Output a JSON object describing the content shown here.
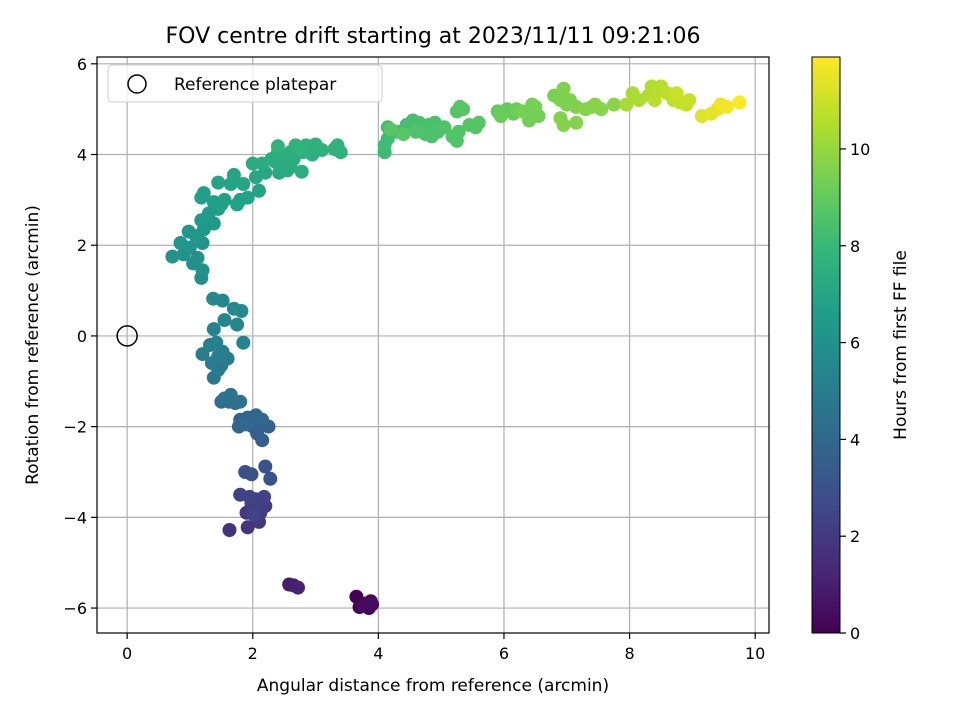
{
  "chart_data": {
    "type": "scatter",
    "title": "FOV centre drift starting at 2023/11/11 09:21:06",
    "xlabel": "Angular distance from reference (arcmin)",
    "ylabel": "Rotation from reference (arcmin)",
    "xlim": [
      -0.48,
      10.22
    ],
    "ylim": [
      -6.55,
      6.15
    ],
    "xticks": [
      0,
      2,
      4,
      6,
      8,
      10
    ],
    "xtick_labels": [
      "0",
      "2",
      "4",
      "6",
      "8",
      "10"
    ],
    "yticks": [
      -6,
      -4,
      -2,
      0,
      2,
      4,
      6
    ],
    "ytick_labels": [
      "−6",
      "−4",
      "−2",
      "0",
      "2",
      "4",
      "6"
    ],
    "grid": true,
    "legend": {
      "position": "upper-left",
      "entries": [
        "Reference platepar"
      ]
    },
    "reference_point": {
      "x": 0,
      "y": 0,
      "label": "Reference platepar",
      "marker": "open-circle"
    },
    "colorbar": {
      "label": "Hours from first FF file",
      "range": [
        0,
        11.9
      ],
      "ticks": [
        0,
        2,
        4,
        6,
        8,
        10
      ],
      "tick_labels": [
        "0",
        "2",
        "4",
        "6",
        "8",
        "10"
      ],
      "colormap": "viridis"
    },
    "points": [
      [
        3.65,
        -5.75,
        0.05
      ],
      [
        3.7,
        -5.98,
        0.1
      ],
      [
        3.8,
        -5.9,
        0.15
      ],
      [
        3.85,
        -6.0,
        0.2
      ],
      [
        3.88,
        -5.85,
        0.25
      ],
      [
        3.78,
        -5.95,
        0.3
      ],
      [
        3.9,
        -5.92,
        0.35
      ],
      [
        2.58,
        -5.48,
        0.9
      ],
      [
        2.65,
        -5.5,
        1.0
      ],
      [
        2.72,
        -5.55,
        1.1
      ],
      [
        1.63,
        -4.28,
        1.7
      ],
      [
        1.92,
        -4.22,
        1.8
      ],
      [
        2.1,
        -4.1,
        1.9
      ],
      [
        1.9,
        -3.9,
        2.0
      ],
      [
        2.0,
        -3.85,
        2.05
      ],
      [
        2.12,
        -3.9,
        2.1
      ],
      [
        2.2,
        -3.75,
        2.15
      ],
      [
        1.98,
        -3.7,
        2.2
      ],
      [
        2.05,
        -3.6,
        2.25
      ],
      [
        1.8,
        -3.5,
        2.3
      ],
      [
        2.18,
        -3.55,
        2.35
      ],
      [
        1.95,
        -3.55,
        2.4
      ],
      [
        2.02,
        -3.95,
        2.45
      ],
      [
        1.88,
        -3.0,
        2.9
      ],
      [
        1.98,
        -3.05,
        2.95
      ],
      [
        2.28,
        -3.15,
        3.0
      ],
      [
        2.2,
        -2.88,
        3.05
      ],
      [
        2.15,
        -2.3,
        3.5
      ],
      [
        2.07,
        -2.15,
        3.55
      ],
      [
        2.0,
        -2.0,
        3.6
      ],
      [
        2.12,
        -2.0,
        3.65
      ],
      [
        2.25,
        -2.0,
        3.7
      ],
      [
        1.78,
        -2.0,
        3.75
      ],
      [
        1.8,
        -1.85,
        3.8
      ],
      [
        1.92,
        -1.8,
        3.85
      ],
      [
        2.05,
        -1.75,
        3.9
      ],
      [
        2.15,
        -1.85,
        3.95
      ],
      [
        1.9,
        -1.95,
        4.0
      ],
      [
        1.5,
        -1.45,
        4.3
      ],
      [
        1.62,
        -1.45,
        4.35
      ],
      [
        1.72,
        -1.48,
        4.4
      ],
      [
        1.65,
        -1.3,
        4.45
      ],
      [
        1.8,
        -1.45,
        4.5
      ],
      [
        1.55,
        -1.38,
        4.55
      ],
      [
        1.38,
        -0.92,
        4.8
      ],
      [
        1.45,
        -0.75,
        4.85
      ],
      [
        1.5,
        -0.65,
        4.9
      ],
      [
        1.35,
        -0.6,
        4.95
      ],
      [
        1.6,
        -0.5,
        5.0
      ],
      [
        1.45,
        -0.45,
        5.05
      ],
      [
        1.2,
        -0.4,
        5.1
      ],
      [
        1.52,
        -0.35,
        5.15
      ],
      [
        1.32,
        -0.2,
        5.2
      ],
      [
        1.42,
        -0.15,
        5.25
      ],
      [
        1.85,
        -0.15,
        5.3
      ],
      [
        1.38,
        0.15,
        5.35
      ],
      [
        1.55,
        0.35,
        5.4
      ],
      [
        1.75,
        0.25,
        5.45
      ],
      [
        1.52,
        0.78,
        5.5
      ],
      [
        1.37,
        0.82,
        5.55
      ],
      [
        1.7,
        0.6,
        5.6
      ],
      [
        1.82,
        0.55,
        5.65
      ],
      [
        1.18,
        1.28,
        5.9
      ],
      [
        1.2,
        1.45,
        5.95
      ],
      [
        1.05,
        1.6,
        6.0
      ],
      [
        1.12,
        1.72,
        6.05
      ],
      [
        0.9,
        1.8,
        6.1
      ],
      [
        0.72,
        1.75,
        6.12
      ],
      [
        1.0,
        1.95,
        6.15
      ],
      [
        1.2,
        2.05,
        6.2
      ],
      [
        0.85,
        2.05,
        6.22
      ],
      [
        1.1,
        2.2,
        6.25
      ],
      [
        0.98,
        2.3,
        6.3
      ],
      [
        1.22,
        2.35,
        6.35
      ],
      [
        1.38,
        2.48,
        6.4
      ],
      [
        1.18,
        2.55,
        6.45
      ],
      [
        1.3,
        2.7,
        6.5
      ],
      [
        1.45,
        2.8,
        6.55
      ],
      [
        1.38,
        2.95,
        6.6
      ],
      [
        1.5,
        2.9,
        6.65
      ],
      [
        1.18,
        3.05,
        6.7
      ],
      [
        1.22,
        3.15,
        6.72
      ],
      [
        1.55,
        3.0,
        6.75
      ],
      [
        1.75,
        2.9,
        6.8
      ],
      [
        1.8,
        3.0,
        6.82
      ],
      [
        1.92,
        3.05,
        6.85
      ],
      [
        2.1,
        3.2,
        6.9
      ],
      [
        1.45,
        3.38,
        6.9
      ],
      [
        1.65,
        3.35,
        6.95
      ],
      [
        1.85,
        3.35,
        7.0
      ],
      [
        1.7,
        3.55,
        7.0
      ],
      [
        2.05,
        3.5,
        7.1
      ],
      [
        2.2,
        3.6,
        7.15
      ],
      [
        2.42,
        3.6,
        7.2
      ],
      [
        2.55,
        3.65,
        7.22
      ],
      [
        2.6,
        3.72,
        7.25
      ],
      [
        2.45,
        3.75,
        7.28
      ],
      [
        2.35,
        3.85,
        7.3
      ],
      [
        2.15,
        3.8,
        7.32
      ],
      [
        2.0,
        3.8,
        7.34
      ],
      [
        2.3,
        3.9,
        7.36
      ],
      [
        2.5,
        3.95,
        7.38
      ],
      [
        2.65,
        3.9,
        7.4
      ],
      [
        2.78,
        3.62,
        7.42
      ],
      [
        2.4,
        4.05,
        7.44
      ],
      [
        2.6,
        4.05,
        7.46
      ],
      [
        2.8,
        4.05,
        7.48
      ],
      [
        2.95,
        4.0,
        7.5
      ],
      [
        3.1,
        4.1,
        7.55
      ],
      [
        2.68,
        4.2,
        7.55
      ],
      [
        2.85,
        4.2,
        7.58
      ],
      [
        3.0,
        4.22,
        7.6
      ],
      [
        3.35,
        4.2,
        7.62
      ],
      [
        3.3,
        4.12,
        7.64
      ],
      [
        3.4,
        4.05,
        7.66
      ],
      [
        2.4,
        4.18,
        7.68
      ],
      [
        2.75,
        4.15,
        7.7
      ],
      [
        4.1,
        4.05,
        8.1
      ],
      [
        4.1,
        4.2,
        8.15
      ],
      [
        4.15,
        4.35,
        8.2
      ],
      [
        4.3,
        4.5,
        8.25
      ],
      [
        4.15,
        4.6,
        8.28
      ],
      [
        4.45,
        4.65,
        8.3
      ],
      [
        4.55,
        4.75,
        8.35
      ],
      [
        4.65,
        4.7,
        8.38
      ],
      [
        4.7,
        4.55,
        8.4
      ],
      [
        4.8,
        4.65,
        8.42
      ],
      [
        4.9,
        4.7,
        8.45
      ],
      [
        4.75,
        4.45,
        8.48
      ],
      [
        4.95,
        4.5,
        8.5
      ],
      [
        4.85,
        4.4,
        8.52
      ],
      [
        4.6,
        4.5,
        8.55
      ],
      [
        5.05,
        4.6,
        8.58
      ],
      [
        5.18,
        4.4,
        8.6
      ],
      [
        5.25,
        4.3,
        8.62
      ],
      [
        5.28,
        4.5,
        8.64
      ],
      [
        5.45,
        4.65,
        8.66
      ],
      [
        5.6,
        4.7,
        8.68
      ],
      [
        5.55,
        4.6,
        8.7
      ],
      [
        5.25,
        4.95,
        8.72
      ],
      [
        5.3,
        5.05,
        8.74
      ],
      [
        5.35,
        5.0,
        8.76
      ],
      [
        4.4,
        4.45,
        8.78
      ],
      [
        4.2,
        4.55,
        8.8
      ],
      [
        5.9,
        4.95,
        9.0
      ],
      [
        6.05,
        5.0,
        9.05
      ],
      [
        6.15,
        4.9,
        9.1
      ],
      [
        5.95,
        4.85,
        9.15
      ],
      [
        6.2,
        5.0,
        9.2
      ],
      [
        6.4,
        4.95,
        9.25
      ],
      [
        6.55,
        4.85,
        9.3
      ],
      [
        6.4,
        4.75,
        9.32
      ],
      [
        6.45,
        5.1,
        9.35
      ],
      [
        6.5,
        5.05,
        9.38
      ],
      [
        6.3,
        4.95,
        9.4
      ],
      [
        6.8,
        5.3,
        9.45
      ],
      [
        6.9,
        5.2,
        9.5
      ],
      [
        7.0,
        5.1,
        9.52
      ],
      [
        6.95,
        5.45,
        9.55
      ],
      [
        7.05,
        5.2,
        9.58
      ],
      [
        7.15,
        5.05,
        9.6
      ],
      [
        6.9,
        4.8,
        9.62
      ],
      [
        6.95,
        4.65,
        9.64
      ],
      [
        7.15,
        4.7,
        9.66
      ],
      [
        7.3,
        5.0,
        9.68
      ],
      [
        7.4,
        5.05,
        9.7
      ],
      [
        7.55,
        5.0,
        9.72
      ],
      [
        7.45,
        5.1,
        9.74
      ],
      [
        7.75,
        5.1,
        9.76
      ],
      [
        7.95,
        5.1,
        10.3
      ],
      [
        8.05,
        5.35,
        10.35
      ],
      [
        8.15,
        5.2,
        10.4
      ],
      [
        8.3,
        5.3,
        10.45
      ],
      [
        8.35,
        5.5,
        10.5
      ],
      [
        8.45,
        5.4,
        10.55
      ],
      [
        8.5,
        5.5,
        10.6
      ],
      [
        8.4,
        5.2,
        10.65
      ],
      [
        8.6,
        5.35,
        10.7
      ],
      [
        8.7,
        5.2,
        10.75
      ],
      [
        8.8,
        5.15,
        10.8
      ],
      [
        8.9,
        5.1,
        10.85
      ],
      [
        8.95,
        5.2,
        10.9
      ],
      [
        8.75,
        5.35,
        10.95
      ],
      [
        9.15,
        4.85,
        11.3
      ],
      [
        9.3,
        4.9,
        11.4
      ],
      [
        9.4,
        5.0,
        11.5
      ],
      [
        9.45,
        5.1,
        11.6
      ],
      [
        9.55,
        5.05,
        11.7
      ],
      [
        9.75,
        5.15,
        11.85
      ]
    ]
  }
}
